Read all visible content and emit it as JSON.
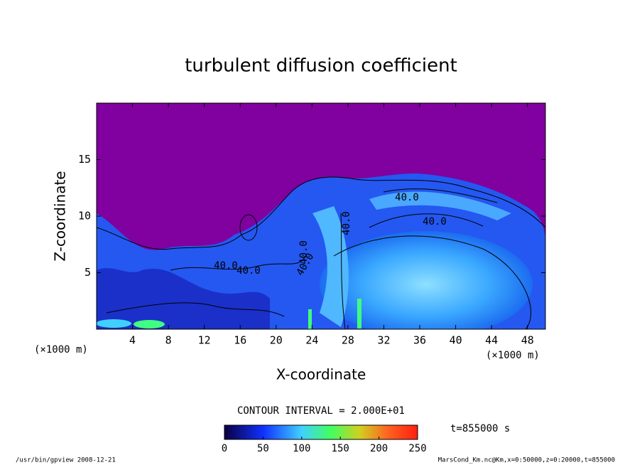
{
  "chart_data": {
    "type": "contour",
    "title": "turbulent diffusion coefficient",
    "x_label": "X-coordinate",
    "y_label": "Z-coordinate",
    "x_unit_label": "(×1000 m)",
    "xlim": [
      0,
      50
    ],
    "xticks": [
      4,
      8,
      12,
      16,
      20,
      24,
      28,
      32,
      36,
      40,
      44,
      48
    ],
    "ylim": [
      0,
      20
    ],
    "yticks": [
      5,
      10,
      15
    ],
    "colorbar_lim": [
      0,
      250
    ],
    "colorbar_ticks": [
      0,
      50,
      100,
      150,
      200,
      250
    ],
    "contour_interval_label": "CONTOUR INTERVAL = 2.000E+01",
    "contour_labels": [
      "40.0",
      "40.0",
      "40.0",
      "40.0",
      "40.0",
      "40.0",
      "40.0"
    ],
    "time_label": "t=855000 s",
    "footer_left": "/usr/bin/gpview   2008-12-21",
    "footer_right": "MarsCond_Km.nc@Km,x=0:50000,z=0:20000,t=855000"
  }
}
